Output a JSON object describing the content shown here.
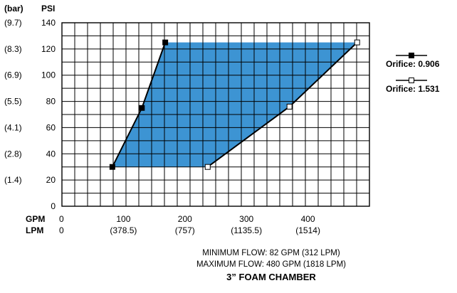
{
  "chart_data": {
    "type": "area",
    "title": "3” FOAM CHAMBER",
    "notes": [
      "MINIMUM FLOW: 82 GPM (312 LPM)",
      "MAXIMUM FLOW: 480 GPM (1818 LPM)"
    ],
    "y_axis": {
      "unit_psi": "PSI",
      "unit_bar": "(bar)",
      "ylim": [
        0,
        140
      ],
      "ticks": [
        0,
        20,
        40,
        60,
        80,
        100,
        120,
        140
      ],
      "bar_labels": [
        "",
        "(1.4)",
        "(2.8)",
        "(4.1)",
        "(5.5)",
        "(6.9)",
        "(8.3)",
        "(9.7)"
      ]
    },
    "x_axis": {
      "gpm_label": "GPM",
      "lpm_label": "LPM",
      "xlim": [
        0,
        500
      ],
      "gpm_ticks": [
        0,
        100,
        200,
        300,
        400
      ],
      "lpm_labels": [
        "0",
        "(378.5)",
        "(757)",
        "(1135.5)",
        "(1514)"
      ]
    },
    "grid": true,
    "fill_color": "#3d94d3",
    "series": [
      {
        "name": "Orifice: 0.906",
        "marker": "filled-square",
        "x": [
          82,
          130,
          168
        ],
        "y": [
          30,
          75,
          125
        ]
      },
      {
        "name": "Orifice: 1.531",
        "marker": "open-square",
        "x": [
          237,
          370,
          480
        ],
        "y": [
          30,
          76,
          125
        ]
      }
    ],
    "legend_position": "right"
  }
}
